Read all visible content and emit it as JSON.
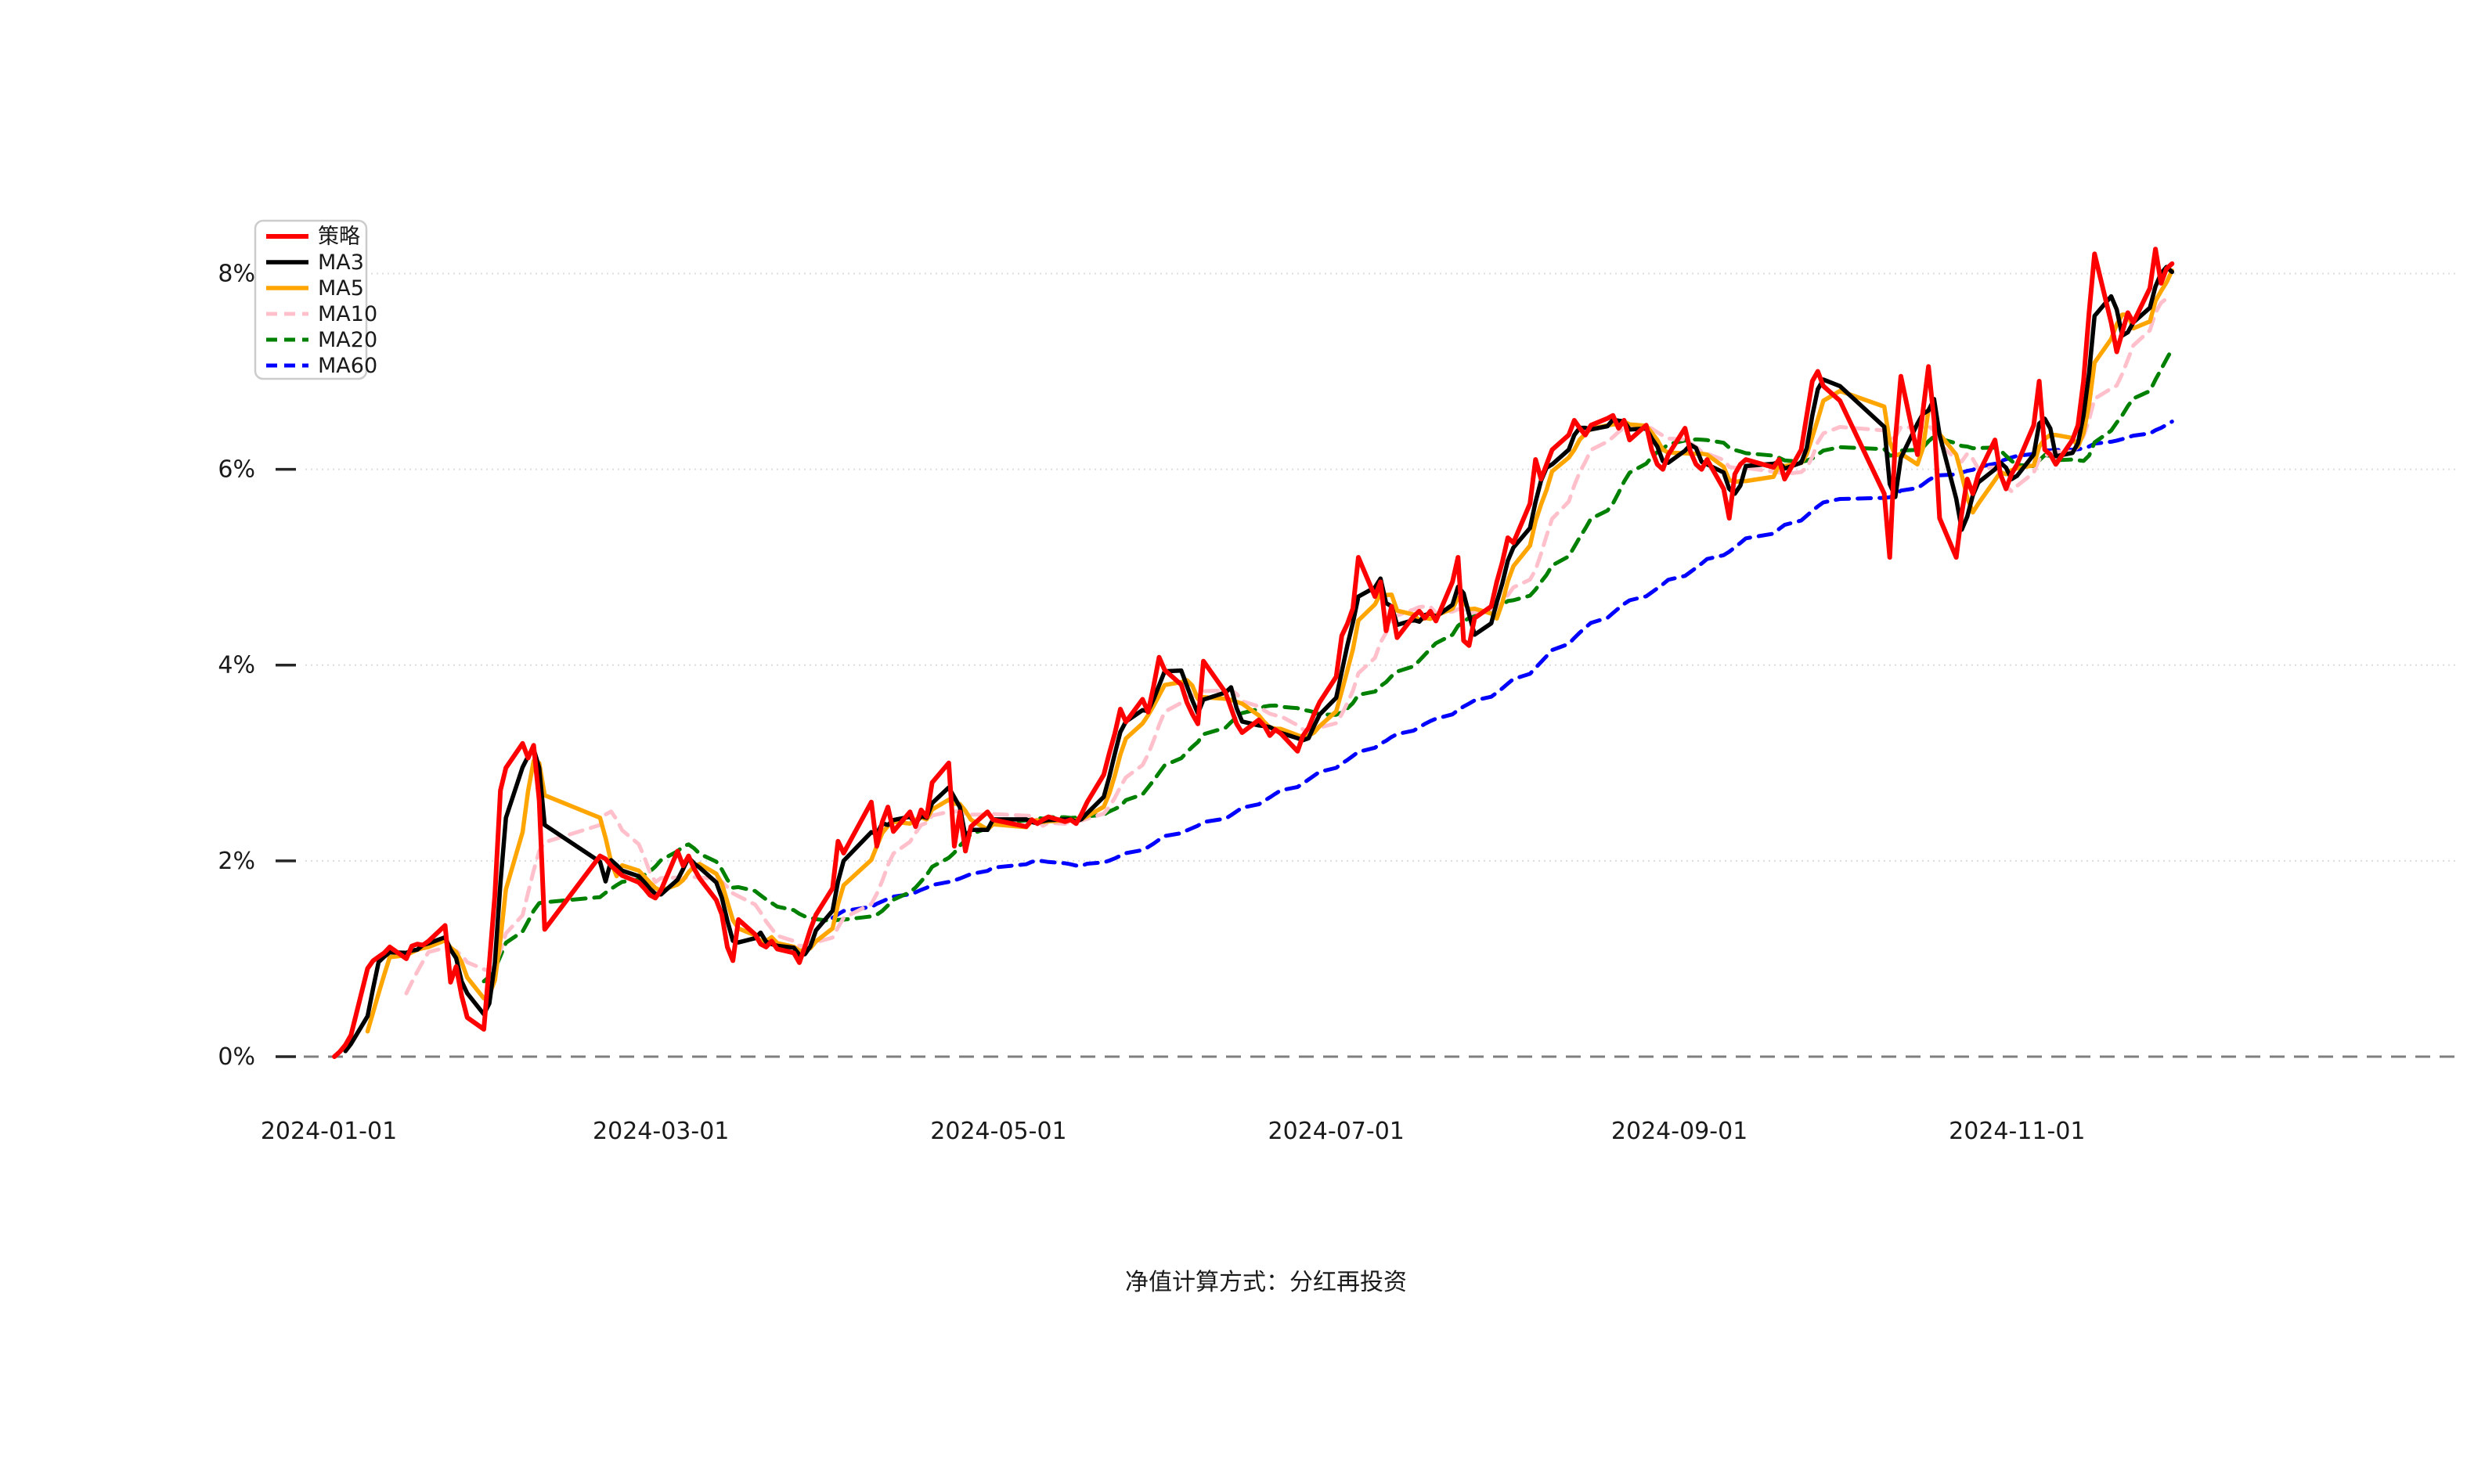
{
  "caption": "净值计算方式：分红再投资",
  "chart_data": {
    "type": "line",
    "title": "",
    "xlabel": "",
    "ylabel": "",
    "y_axis": {
      "unit": "%",
      "tick_labels": [
        "0%",
        "2%",
        "4%",
        "6%",
        "8%"
      ],
      "tick_values": [
        0,
        2,
        4,
        6,
        8
      ],
      "ylim": [
        -0.75,
        8.95
      ],
      "zero_line_style": "dashed-gray",
      "grid": "horizontal-dotted-light"
    },
    "x_axis": {
      "tick_labels": [
        "2024-01-01",
        "2024-03-01",
        "2024-05-01",
        "2024-07-01",
        "2024-09-01",
        "2024-11-01"
      ],
      "first_data_date": "2024-01-02",
      "last_data_date": "2024-11-29"
    },
    "legend": {
      "position": "upper-left",
      "entries": [
        "策略",
        "MA3",
        "MA5",
        "MA10",
        "MA20",
        "MA60"
      ]
    },
    "series": [
      {
        "name": "策略",
        "color": "#ff0000",
        "style": "solid",
        "type": "raw",
        "width": 6
      },
      {
        "name": "MA3",
        "color": "#000000",
        "style": "solid",
        "type": "moving_average",
        "window": 3,
        "width": 5.5
      },
      {
        "name": "MA5",
        "color": "#ffa500",
        "style": "solid",
        "type": "moving_average",
        "window": 5,
        "width": 5.5
      },
      {
        "name": "MA10",
        "color": "#ffc0cb",
        "style": "dashed",
        "type": "moving_average",
        "window": 10,
        "width": 5
      },
      {
        "name": "MA20",
        "color": "#008000",
        "style": "dashed",
        "type": "moving_average",
        "window": 20,
        "width": 5
      },
      {
        "name": "MA60",
        "color": "#0000ff",
        "style": "dashed",
        "type": "moving_average",
        "window": 60,
        "width": 5
      }
    ],
    "strategy_daily_cumulative_return_pct": [
      [
        "2024-01-02",
        0.0
      ],
      [
        "2024-01-03",
        0.05
      ],
      [
        "2024-01-04",
        0.12
      ],
      [
        "2024-01-05",
        0.22
      ],
      [
        "2024-01-08",
        0.9
      ],
      [
        "2024-01-09",
        0.98
      ],
      [
        "2024-01-10",
        1.02
      ],
      [
        "2024-01-11",
        1.06
      ],
      [
        "2024-01-12",
        1.12
      ],
      [
        "2024-01-15",
        1.0
      ],
      [
        "2024-01-16",
        1.13
      ],
      [
        "2024-01-17",
        1.15
      ],
      [
        "2024-01-18",
        1.14
      ],
      [
        "2024-01-19",
        1.18
      ],
      [
        "2024-01-22",
        1.34
      ],
      [
        "2024-01-23",
        0.76
      ],
      [
        "2024-01-24",
        0.92
      ],
      [
        "2024-01-25",
        0.62
      ],
      [
        "2024-01-26",
        0.4
      ],
      [
        "2024-01-29",
        0.28
      ],
      [
        "2024-01-30",
        0.95
      ],
      [
        "2024-01-31",
        1.65
      ],
      [
        "2024-02-01",
        2.72
      ],
      [
        "2024-02-02",
        2.95
      ],
      [
        "2024-02-05",
        3.2
      ],
      [
        "2024-02-06",
        3.05
      ],
      [
        "2024-02-07",
        3.18
      ],
      [
        "2024-02-08",
        2.62
      ],
      [
        "2024-02-09",
        1.3
      ],
      [
        "2024-02-19",
        2.05
      ],
      [
        "2024-02-20",
        2.02
      ],
      [
        "2024-02-21",
        1.95
      ],
      [
        "2024-02-22",
        1.9
      ],
      [
        "2024-02-23",
        1.85
      ],
      [
        "2024-02-26",
        1.78
      ],
      [
        "2024-02-27",
        1.72
      ],
      [
        "2024-02-28",
        1.65
      ],
      [
        "2024-02-29",
        1.62
      ],
      [
        "2024-03-01",
        1.7
      ],
      [
        "2024-03-04",
        2.1
      ],
      [
        "2024-03-05",
        1.95
      ],
      [
        "2024-03-06",
        2.05
      ],
      [
        "2024-03-07",
        1.92
      ],
      [
        "2024-03-08",
        1.82
      ],
      [
        "2024-03-11",
        1.6
      ],
      [
        "2024-03-12",
        1.45
      ],
      [
        "2024-03-13",
        1.12
      ],
      [
        "2024-03-14",
        0.98
      ],
      [
        "2024-03-15",
        1.4
      ],
      [
        "2024-03-18",
        1.25
      ],
      [
        "2024-03-19",
        1.15
      ],
      [
        "2024-03-20",
        1.12
      ],
      [
        "2024-03-21",
        1.18
      ],
      [
        "2024-03-22",
        1.1
      ],
      [
        "2024-03-25",
        1.06
      ],
      [
        "2024-03-26",
        0.96
      ],
      [
        "2024-03-27",
        1.12
      ],
      [
        "2024-03-28",
        1.3
      ],
      [
        "2024-03-29",
        1.45
      ],
      [
        "2024-04-01",
        1.72
      ],
      [
        "2024-04-02",
        2.2
      ],
      [
        "2024-04-03",
        2.08
      ],
      [
        "2024-04-08",
        2.6
      ],
      [
        "2024-04-09",
        2.15
      ],
      [
        "2024-04-10",
        2.4
      ],
      [
        "2024-04-11",
        2.55
      ],
      [
        "2024-04-12",
        2.3
      ],
      [
        "2024-04-15",
        2.5
      ],
      [
        "2024-04-16",
        2.35
      ],
      [
        "2024-04-17",
        2.52
      ],
      [
        "2024-04-18",
        2.45
      ],
      [
        "2024-04-19",
        2.8
      ],
      [
        "2024-04-22",
        3.0
      ],
      [
        "2024-04-23",
        2.15
      ],
      [
        "2024-04-24",
        2.5
      ],
      [
        "2024-04-25",
        2.1
      ],
      [
        "2024-04-26",
        2.35
      ],
      [
        "2024-04-29",
        2.5
      ],
      [
        "2024-04-30",
        2.42
      ],
      [
        "2024-05-06",
        2.35
      ],
      [
        "2024-05-07",
        2.42
      ],
      [
        "2024-05-08",
        2.38
      ],
      [
        "2024-05-09",
        2.42
      ],
      [
        "2024-05-10",
        2.45
      ],
      [
        "2024-05-13",
        2.4
      ],
      [
        "2024-05-14",
        2.42
      ],
      [
        "2024-05-15",
        2.38
      ],
      [
        "2024-05-16",
        2.48
      ],
      [
        "2024-05-17",
        2.6
      ],
      [
        "2024-05-20",
        2.88
      ],
      [
        "2024-05-21",
        3.1
      ],
      [
        "2024-05-22",
        3.3
      ],
      [
        "2024-05-23",
        3.55
      ],
      [
        "2024-05-24",
        3.42
      ],
      [
        "2024-05-27",
        3.65
      ],
      [
        "2024-05-28",
        3.52
      ],
      [
        "2024-05-29",
        3.78
      ],
      [
        "2024-05-30",
        4.08
      ],
      [
        "2024-05-31",
        3.95
      ],
      [
        "2024-06-03",
        3.8
      ],
      [
        "2024-06-04",
        3.62
      ],
      [
        "2024-06-05",
        3.5
      ],
      [
        "2024-06-06",
        3.4
      ],
      [
        "2024-06-07",
        4.04
      ],
      [
        "2024-06-11",
        3.72
      ],
      [
        "2024-06-12",
        3.56
      ],
      [
        "2024-06-13",
        3.4
      ],
      [
        "2024-06-14",
        3.31
      ],
      [
        "2024-06-17",
        3.44
      ],
      [
        "2024-06-18",
        3.38
      ],
      [
        "2024-06-19",
        3.28
      ],
      [
        "2024-06-20",
        3.34
      ],
      [
        "2024-06-21",
        3.3
      ],
      [
        "2024-06-24",
        3.12
      ],
      [
        "2024-06-25",
        3.28
      ],
      [
        "2024-06-26",
        3.36
      ],
      [
        "2024-06-27",
        3.5
      ],
      [
        "2024-06-28",
        3.62
      ],
      [
        "2024-07-01",
        3.88
      ],
      [
        "2024-07-02",
        4.3
      ],
      [
        "2024-07-03",
        4.42
      ],
      [
        "2024-07-04",
        4.58
      ],
      [
        "2024-07-05",
        5.1
      ],
      [
        "2024-07-08",
        4.7
      ],
      [
        "2024-07-09",
        4.85
      ],
      [
        "2024-07-10",
        4.35
      ],
      [
        "2024-07-11",
        4.6
      ],
      [
        "2024-07-12",
        4.28
      ],
      [
        "2024-07-15",
        4.5
      ],
      [
        "2024-07-16",
        4.55
      ],
      [
        "2024-07-17",
        4.48
      ],
      [
        "2024-07-18",
        4.55
      ],
      [
        "2024-07-19",
        4.45
      ],
      [
        "2024-07-22",
        4.85
      ],
      [
        "2024-07-23",
        5.1
      ],
      [
        "2024-07-24",
        4.25
      ],
      [
        "2024-07-25",
        4.2
      ],
      [
        "2024-07-26",
        4.48
      ],
      [
        "2024-07-29",
        4.6
      ],
      [
        "2024-07-30",
        4.85
      ],
      [
        "2024-07-31",
        5.05
      ],
      [
        "2024-08-01",
        5.3
      ],
      [
        "2024-08-02",
        5.25
      ],
      [
        "2024-08-05",
        5.65
      ],
      [
        "2024-08-06",
        6.1
      ],
      [
        "2024-08-07",
        5.9
      ],
      [
        "2024-08-08",
        6.05
      ],
      [
        "2024-08-09",
        6.2
      ],
      [
        "2024-08-12",
        6.35
      ],
      [
        "2024-08-13",
        6.5
      ],
      [
        "2024-08-14",
        6.42
      ],
      [
        "2024-08-15",
        6.35
      ],
      [
        "2024-08-16",
        6.45
      ],
      [
        "2024-08-19",
        6.52
      ],
      [
        "2024-08-20",
        6.55
      ],
      [
        "2024-08-21",
        6.42
      ],
      [
        "2024-08-22",
        6.5
      ],
      [
        "2024-08-23",
        6.3
      ],
      [
        "2024-08-26",
        6.45
      ],
      [
        "2024-08-27",
        6.2
      ],
      [
        "2024-08-28",
        6.05
      ],
      [
        "2024-08-29",
        6.0
      ],
      [
        "2024-08-30",
        6.15
      ],
      [
        "2024-09-02",
        6.42
      ],
      [
        "2024-09-03",
        6.18
      ],
      [
        "2024-09-04",
        6.05
      ],
      [
        "2024-09-05",
        6.0
      ],
      [
        "2024-09-06",
        6.1
      ],
      [
        "2024-09-09",
        5.8
      ],
      [
        "2024-09-10",
        5.5
      ],
      [
        "2024-09-11",
        5.95
      ],
      [
        "2024-09-12",
        6.05
      ],
      [
        "2024-09-13",
        6.1
      ],
      [
        "2024-09-18",
        6.02
      ],
      [
        "2024-09-19",
        6.1
      ],
      [
        "2024-09-20",
        5.9
      ],
      [
        "2024-09-23",
        6.2
      ],
      [
        "2024-09-24",
        6.55
      ],
      [
        "2024-09-25",
        6.9
      ],
      [
        "2024-09-26",
        7.0
      ],
      [
        "2024-09-27",
        6.85
      ],
      [
        "2024-09-30",
        6.7
      ],
      [
        "2024-10-08",
        5.75
      ],
      [
        "2024-10-09",
        5.1
      ],
      [
        "2024-10-10",
        6.3
      ],
      [
        "2024-10-11",
        6.95
      ],
      [
        "2024-10-14",
        6.15
      ],
      [
        "2024-10-15",
        6.6
      ],
      [
        "2024-10-16",
        7.05
      ],
      [
        "2024-10-17",
        6.5
      ],
      [
        "2024-10-18",
        5.5
      ],
      [
        "2024-10-21",
        5.1
      ],
      [
        "2024-10-22",
        5.55
      ],
      [
        "2024-10-23",
        5.9
      ],
      [
        "2024-10-24",
        5.75
      ],
      [
        "2024-10-25",
        5.95
      ],
      [
        "2024-10-28",
        6.3
      ],
      [
        "2024-10-29",
        5.95
      ],
      [
        "2024-10-30",
        5.8
      ],
      [
        "2024-10-31",
        5.95
      ],
      [
        "2024-11-01",
        6.05
      ],
      [
        "2024-11-04",
        6.45
      ],
      [
        "2024-11-05",
        6.9
      ],
      [
        "2024-11-06",
        6.2
      ],
      [
        "2024-11-07",
        6.15
      ],
      [
        "2024-11-08",
        6.05
      ],
      [
        "2024-11-11",
        6.3
      ],
      [
        "2024-11-12",
        6.45
      ],
      [
        "2024-11-13",
        6.9
      ],
      [
        "2024-11-14",
        7.6
      ],
      [
        "2024-11-15",
        8.2
      ],
      [
        "2024-11-18",
        7.5
      ],
      [
        "2024-11-19",
        7.2
      ],
      [
        "2024-11-20",
        7.4
      ],
      [
        "2024-11-21",
        7.6
      ],
      [
        "2024-11-22",
        7.5
      ],
      [
        "2024-11-25",
        7.85
      ],
      [
        "2024-11-26",
        8.25
      ],
      [
        "2024-11-27",
        7.9
      ],
      [
        "2024-11-28",
        8.05
      ],
      [
        "2024-11-29",
        8.1
      ]
    ]
  }
}
